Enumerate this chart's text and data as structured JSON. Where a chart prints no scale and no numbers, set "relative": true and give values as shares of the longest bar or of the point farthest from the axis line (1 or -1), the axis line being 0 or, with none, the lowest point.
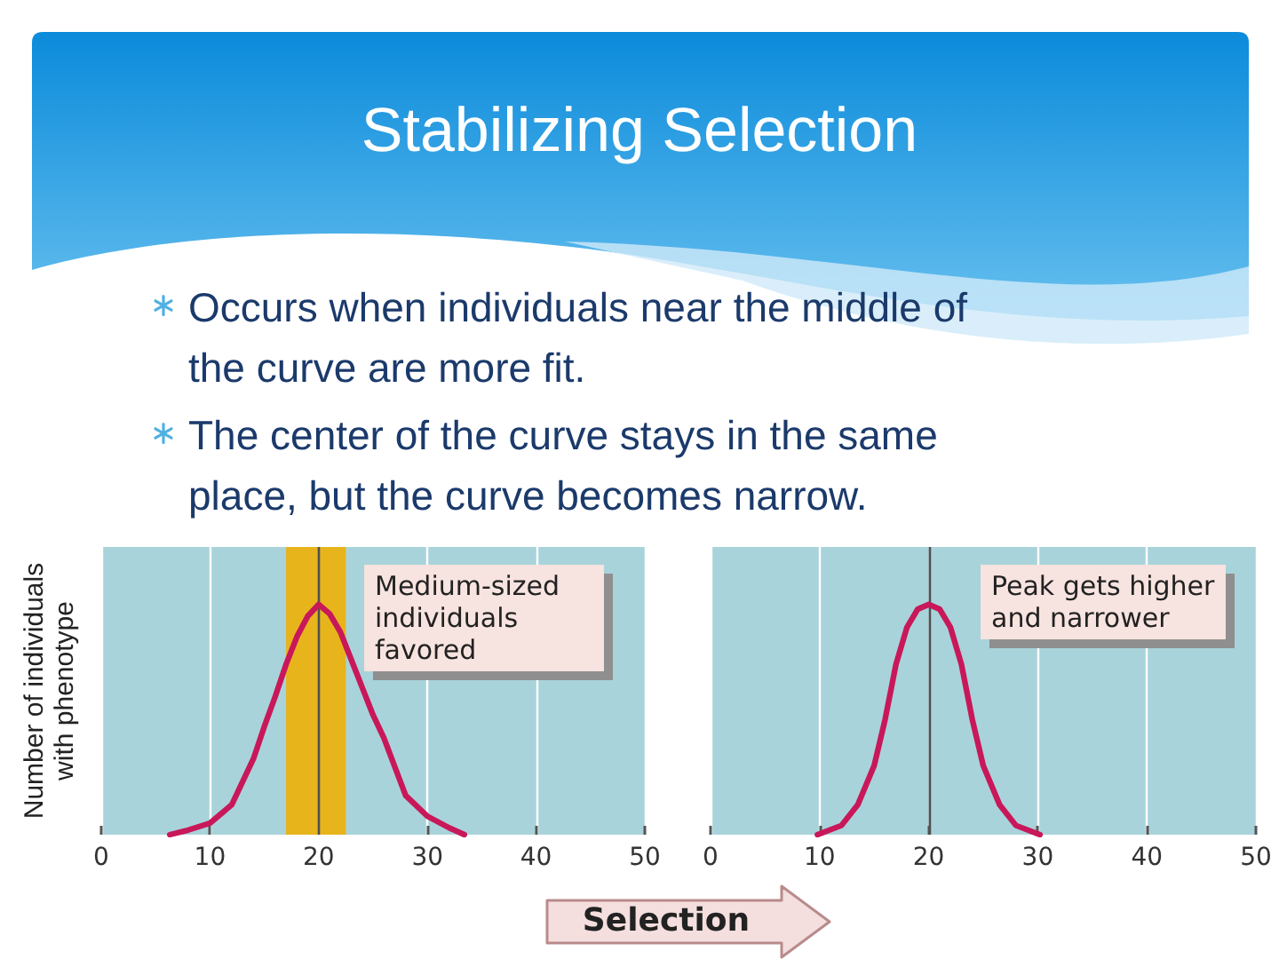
{
  "chart_data": [
    {
      "type": "other",
      "title": "Stabilizing Selection",
      "annotations": [
        "Occurs when individuals near the middle of the curve are more fit.",
        "The center of the curve stays in the same place, but the curve becomes narrow."
      ]
    },
    {
      "type": "line",
      "relative": true,
      "ylabel": "Number of individuals with phenotype",
      "x": [
        6.3,
        8,
        10,
        12,
        14,
        15,
        16,
        17,
        18,
        19,
        20,
        21,
        22,
        23,
        24,
        25,
        26,
        28,
        30,
        32,
        33.4
      ],
      "values": [
        0,
        0.02,
        0.05,
        0.13,
        0.33,
        0.47,
        0.6,
        0.74,
        0.86,
        0.95,
        1,
        0.96,
        0.88,
        0.76,
        0.64,
        0.52,
        0.42,
        0.17,
        0.08,
        0.03,
        0
      ],
      "color": "#c8185a",
      "marker": "none",
      "xlim": [
        0,
        50
      ],
      "xticks": [
        0,
        10,
        20,
        30,
        40,
        50
      ],
      "tick_labels": "x",
      "grid": "x",
      "bands": [
        {
          "axis": "x",
          "from": 17,
          "to": 22.5,
          "color": "#e8b41c"
        }
      ],
      "ref_lines": [
        {
          "axis": "x",
          "value": 20,
          "color": "#505050"
        }
      ],
      "annotations": [
        "Medium-sized individuals favored"
      ]
    },
    {
      "type": "line",
      "relative": true,
      "x": [
        9.8,
        12,
        13.5,
        15,
        16,
        17,
        18,
        19,
        20,
        21,
        22,
        23,
        24,
        25,
        26.5,
        28,
        30.2
      ],
      "values": [
        0,
        0.04,
        0.13,
        0.3,
        0.5,
        0.74,
        0.9,
        0.98,
        1,
        0.98,
        0.9,
        0.74,
        0.5,
        0.3,
        0.13,
        0.04,
        0
      ],
      "color": "#c8185a",
      "marker": "none",
      "xlim": [
        0,
        50
      ],
      "xticks": [
        0,
        10,
        20,
        30,
        40,
        50
      ],
      "tick_labels": "x",
      "grid": "x",
      "ref_lines": [
        {
          "axis": "x",
          "value": 20,
          "color": "#505050"
        }
      ],
      "annotations": [
        "Peak gets higher and narrower",
        "Selection"
      ]
    }
  ]
}
